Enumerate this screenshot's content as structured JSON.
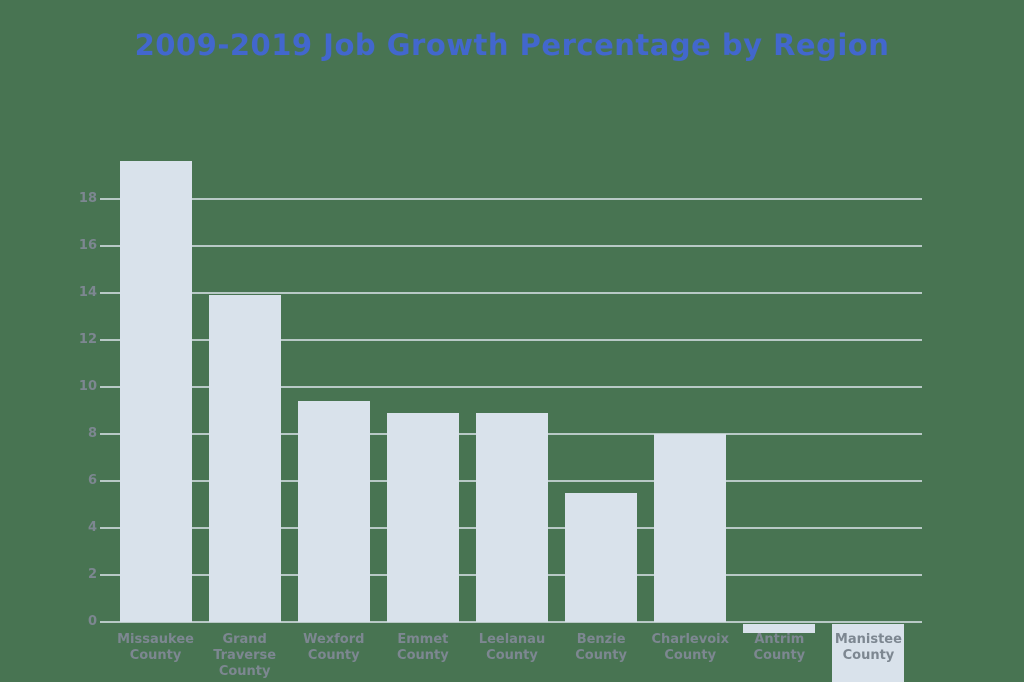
{
  "colors": {
    "background": "#487452",
    "bar_fill": "#d9e2eb",
    "gridline": "rgba(222,230,238,0.75)",
    "title": "#4267cd",
    "axis_label": "#7d8791"
  },
  "chart_data": {
    "type": "bar",
    "title": "2009-2019 Job Growth Percentage by Region",
    "xlabel": "",
    "ylabel": "",
    "categories": [
      "Missaukee County",
      "Grand Traverse County",
      "Wexford County",
      "Emmet County",
      "Leelanau County",
      "Benzie County",
      "Charlevoix County",
      "Antrim County",
      "Manistee County"
    ],
    "values": [
      19.6,
      13.9,
      9.4,
      8.9,
      8.9,
      5.5,
      8.0,
      -0.4,
      -2.6
    ],
    "y_ticks": [
      0,
      2,
      4,
      6,
      8,
      10,
      12,
      14,
      16,
      18
    ],
    "ylim": [
      -2.6,
      20
    ],
    "grid": true,
    "legend": "none",
    "bottom_clipped_category": "Manistee County"
  }
}
